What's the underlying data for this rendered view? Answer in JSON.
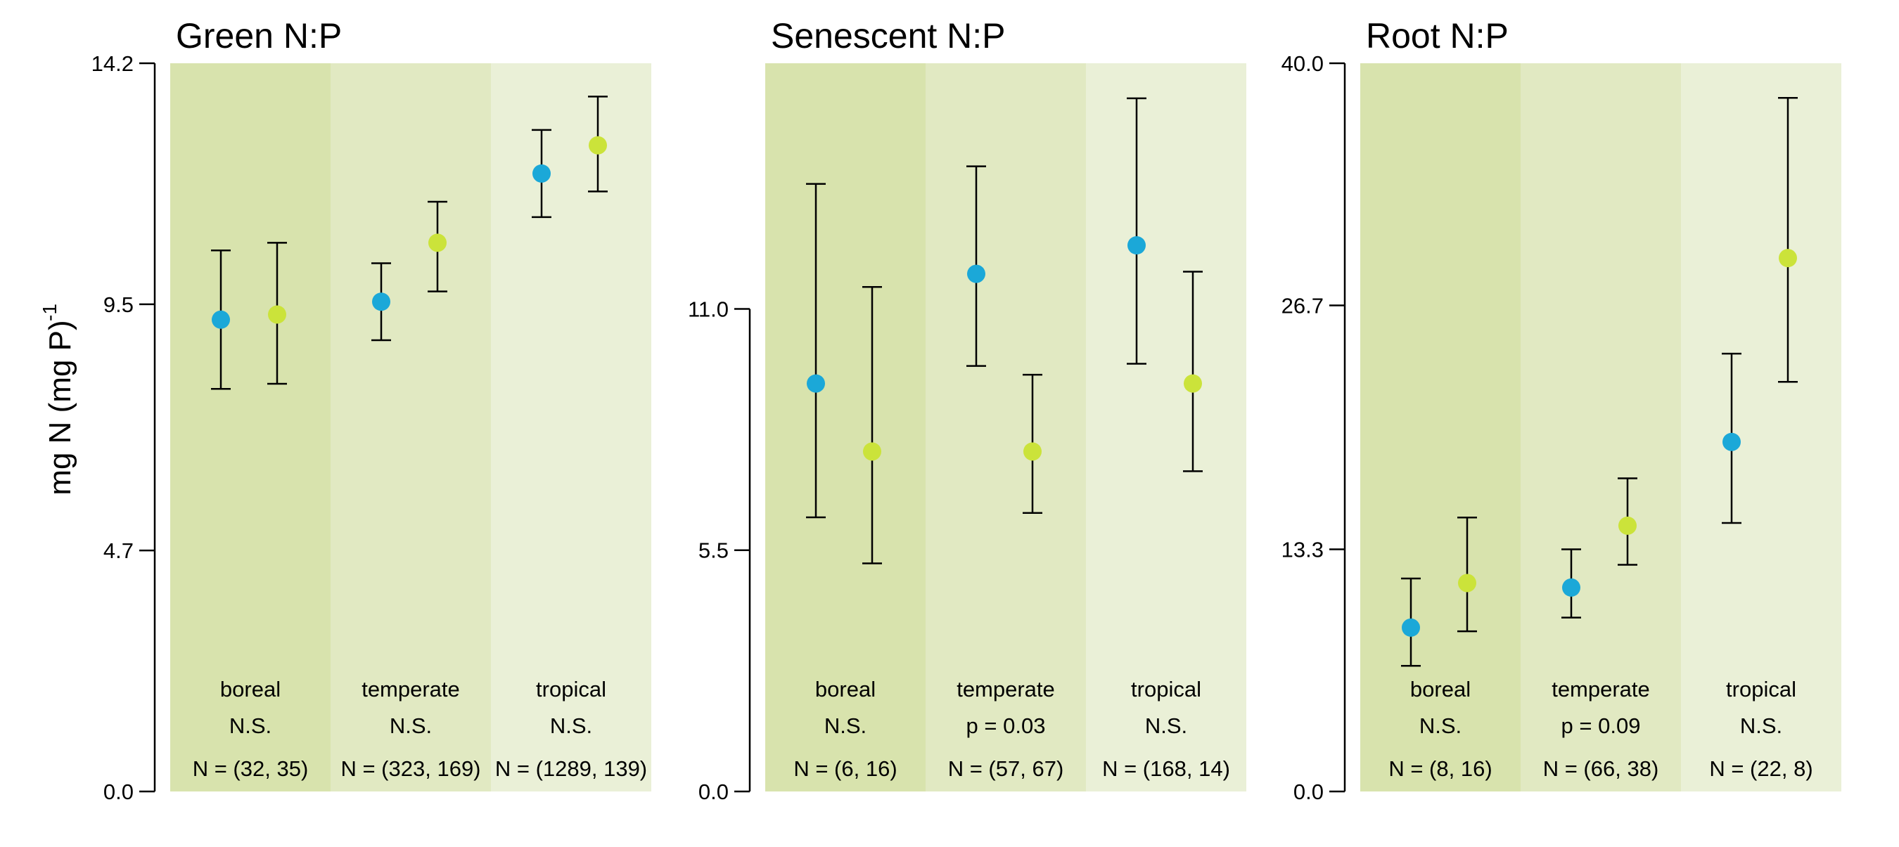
{
  "y_axis_label": "mg N (mg P)",
  "y_axis_label_sup": "-1",
  "colors": {
    "series_blue": "#1ba8d8",
    "series_green": "#cbe33a",
    "band_boreal": "#d8e3ad",
    "band_temperate": "#e1e9c2",
    "band_tropical": "#eaf0d7",
    "errorbar": "#000000"
  },
  "chart_data": [
    {
      "type": "scatter",
      "title": "Green N:P",
      "ylim": [
        0,
        14.2
      ],
      "yticks": [
        0.0,
        4.7,
        9.5,
        14.2
      ],
      "ytick_labels": [
        "0.0",
        "4.7",
        "9.5",
        "14.2"
      ],
      "groups": [
        {
          "name": "boreal",
          "sig": "N.S.",
          "n": "N = (32, 35)",
          "points": [
            {
              "mean": 9.2,
              "lo": 7.85,
              "hi": 10.55
            },
            {
              "mean": 9.3,
              "lo": 7.95,
              "hi": 10.7
            }
          ]
        },
        {
          "name": "temperate",
          "sig": "N.S.",
          "n": "N = (323, 169)",
          "points": [
            {
              "mean": 9.55,
              "lo": 8.8,
              "hi": 10.3
            },
            {
              "mean": 10.7,
              "lo": 9.75,
              "hi": 11.5
            }
          ]
        },
        {
          "name": "tropical",
          "sig": "N.S.",
          "n": "N = (1289, 139)",
          "points": [
            {
              "mean": 12.05,
              "lo": 11.2,
              "hi": 12.9
            },
            {
              "mean": 12.6,
              "lo": 11.7,
              "hi": 13.55
            }
          ]
        }
      ]
    },
    {
      "type": "scatter",
      "title": "Senescent N:P",
      "ylim": [
        0,
        16.6
      ],
      "yticks": [
        0.0,
        5.5,
        11.0
      ],
      "ytick_labels": [
        "0.0",
        "5.5",
        "11.0"
      ],
      "groups": [
        {
          "name": "boreal",
          "sig": "N.S.",
          "n": "N = (6, 16)",
          "points": [
            {
              "mean": 9.3,
              "lo": 6.25,
              "hi": 13.85
            },
            {
              "mean": 7.75,
              "lo": 5.2,
              "hi": 11.5
            }
          ]
        },
        {
          "name": "temperate",
          "sig": "p = 0.03",
          "n": "N = (57, 67)",
          "points": [
            {
              "mean": 11.8,
              "lo": 9.7,
              "hi": 14.25
            },
            {
              "mean": 7.75,
              "lo": 6.35,
              "hi": 9.5
            }
          ]
        },
        {
          "name": "tropical",
          "sig": "N.S.",
          "n": "N = (168, 14)",
          "points": [
            {
              "mean": 12.45,
              "lo": 9.75,
              "hi": 15.8
            },
            {
              "mean": 9.3,
              "lo": 7.3,
              "hi": 11.85
            }
          ]
        }
      ]
    },
    {
      "type": "scatter",
      "title": "Root N:P",
      "ylim": [
        0,
        40.0
      ],
      "yticks": [
        0.0,
        13.3,
        26.7,
        40.0
      ],
      "ytick_labels": [
        "0.0",
        "13.3",
        "26.7",
        "40.0"
      ],
      "groups": [
        {
          "name": "boreal",
          "sig": "N.S.",
          "n": "N = (8, 16)",
          "points": [
            {
              "mean": 9.0,
              "lo": 6.9,
              "hi": 11.7
            },
            {
              "mean": 11.45,
              "lo": 8.8,
              "hi": 15.05
            }
          ]
        },
        {
          "name": "temperate",
          "sig": "p = 0.09",
          "n": "N = (66, 38)",
          "points": [
            {
              "mean": 11.2,
              "lo": 9.55,
              "hi": 13.3
            },
            {
              "mean": 14.6,
              "lo": 12.45,
              "hi": 17.2
            }
          ]
        },
        {
          "name": "tropical",
          "sig": "N.S.",
          "n": "N = (22, 8)",
          "points": [
            {
              "mean": 19.2,
              "lo": 14.75,
              "hi": 24.05
            },
            {
              "mean": 29.3,
              "lo": 22.5,
              "hi": 38.1
            }
          ]
        }
      ]
    }
  ]
}
